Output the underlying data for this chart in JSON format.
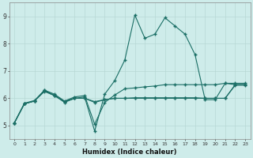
{
  "xlabel": "Humidex (Indice chaleur)",
  "background_color": "#ceecea",
  "grid_color": "#b8d8d5",
  "line_color": "#1a6e65",
  "xlim": [
    -0.5,
    23.5
  ],
  "ylim": [
    4.5,
    9.5
  ],
  "yticks": [
    5,
    6,
    7,
    8,
    9
  ],
  "xticks": [
    0,
    1,
    2,
    3,
    4,
    5,
    6,
    7,
    8,
    9,
    10,
    11,
    12,
    13,
    14,
    15,
    16,
    17,
    18,
    19,
    20,
    21,
    22,
    23
  ],
  "series1_x": [
    0,
    1,
    2,
    3,
    4,
    5,
    6,
    7,
    8,
    9,
    10,
    11,
    12,
    13,
    14,
    15,
    16,
    17,
    18,
    19,
    20,
    21,
    22,
    23
  ],
  "series1_y": [
    5.1,
    5.8,
    5.9,
    6.3,
    6.1,
    5.85,
    6.0,
    6.05,
    4.8,
    6.15,
    6.65,
    7.4,
    9.05,
    8.2,
    8.35,
    8.95,
    8.65,
    8.35,
    7.6,
    5.95,
    5.95,
    6.55,
    6.5,
    6.5
  ],
  "series2_x": [
    0,
    1,
    2,
    3,
    4,
    5,
    6,
    7,
    8,
    9,
    10,
    11,
    12,
    13,
    14,
    15,
    16,
    17,
    18,
    19,
    20,
    21,
    22,
    23
  ],
  "series2_y": [
    5.1,
    5.8,
    5.9,
    6.3,
    6.15,
    5.9,
    6.05,
    6.1,
    5.05,
    5.85,
    6.12,
    6.35,
    6.38,
    6.42,
    6.45,
    6.5,
    6.5,
    6.5,
    6.5,
    6.5,
    6.5,
    6.55,
    6.55,
    6.55
  ],
  "series3_x": [
    0,
    1,
    2,
    3,
    4,
    5,
    6,
    7,
    8,
    9,
    10,
    11,
    12,
    13,
    14,
    15,
    16,
    17,
    18,
    19,
    20,
    21,
    22,
    23
  ],
  "series3_y": [
    5.1,
    5.8,
    5.9,
    6.25,
    6.1,
    5.88,
    6.0,
    6.0,
    5.85,
    5.95,
    6.0,
    6.0,
    6.02,
    6.02,
    6.02,
    6.02,
    6.02,
    6.02,
    6.02,
    6.0,
    6.0,
    6.0,
    6.5,
    6.5
  ],
  "series4_x": [
    0,
    1,
    2,
    3,
    4,
    5,
    6,
    7,
    8,
    9,
    10,
    11,
    12,
    13,
    14,
    15,
    16,
    17,
    18,
    19,
    20,
    21,
    22,
    23
  ],
  "series4_y": [
    5.1,
    5.82,
    5.92,
    6.27,
    6.1,
    5.88,
    6.0,
    6.0,
    5.88,
    5.95,
    6.0,
    6.0,
    6.0,
    6.0,
    6.0,
    6.0,
    6.0,
    6.0,
    6.0,
    6.0,
    6.0,
    6.0,
    6.48,
    6.48
  ]
}
